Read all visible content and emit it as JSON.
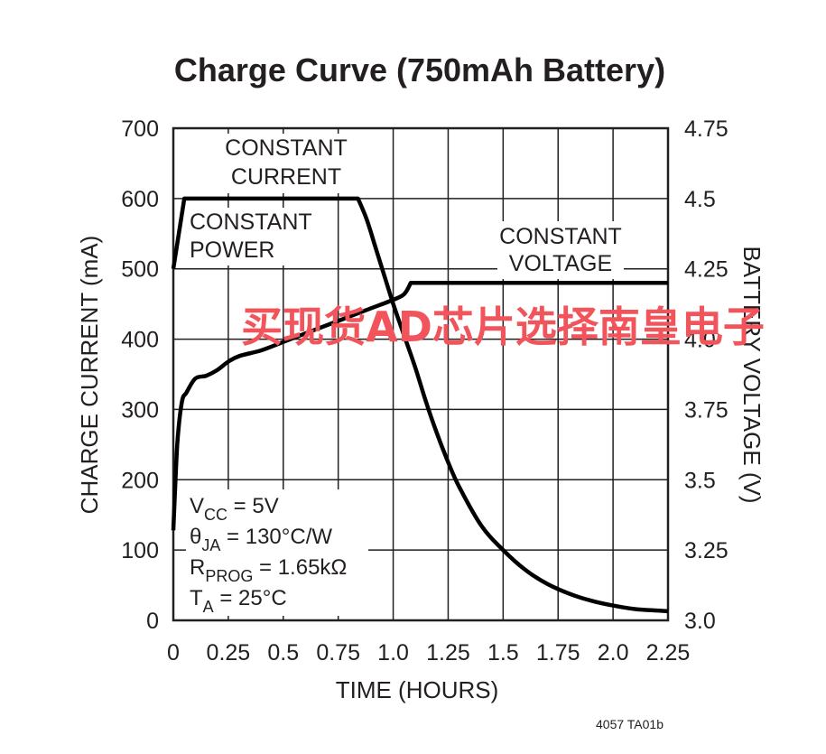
{
  "chart_data": {
    "type": "line",
    "title": "Charge Curve (750mAh Battery)",
    "xlabel": "TIME (HOURS)",
    "ylabel": "CHARGE CURRENT (mA)",
    "y2label": "BATTERY VOLTAGE (V)",
    "xlim": [
      0,
      2.25
    ],
    "ylim": [
      0,
      700
    ],
    "y2lim": [
      3.0,
      4.75
    ],
    "grid": true,
    "x_ticks": [
      "0",
      "0.25",
      "0.5",
      "0.75",
      "1.0",
      "1.25",
      "1.5",
      "1.75",
      "2.0",
      "2.25"
    ],
    "y_ticks": [
      "0",
      "100",
      "200",
      "300",
      "400",
      "500",
      "600",
      "700"
    ],
    "y2_ticks": [
      "3.0",
      "3.25",
      "3.5",
      "3.75",
      "4.0",
      "4.25",
      "4.5",
      "4.75"
    ],
    "series": [
      {
        "axis": "left",
        "x": [
          0,
          0.05,
          0.84,
          0.88,
          0.92,
          0.96,
          1.0,
          1.05,
          1.1,
          1.15,
          1.2,
          1.25,
          1.3,
          1.4,
          1.5,
          1.6,
          1.7,
          1.8,
          1.9,
          2.0,
          2.1,
          2.2,
          2.25
        ],
        "y": [
          500,
          600,
          600,
          570,
          530,
          490,
          450,
          405,
          360,
          310,
          265,
          225,
          190,
          135,
          100,
          72,
          52,
          38,
          28,
          21,
          16,
          14,
          13
        ]
      },
      {
        "axis": "right",
        "x": [
          0,
          0.01,
          0.02,
          0.04,
          0.06,
          0.1,
          0.15,
          0.2,
          0.25,
          0.3,
          0.4,
          0.5,
          0.6,
          0.7,
          0.8,
          0.9,
          1.0,
          1.05,
          1.08,
          1.5,
          2.0,
          2.25
        ],
        "y": [
          3.32,
          3.5,
          3.65,
          3.78,
          3.81,
          3.86,
          3.87,
          3.89,
          3.92,
          3.94,
          3.96,
          3.99,
          4.02,
          4.05,
          4.08,
          4.11,
          4.14,
          4.16,
          4.2,
          4.2,
          4.2,
          4.2
        ]
      }
    ],
    "annotations": {
      "constant_current": [
        "CONSTANT",
        "CURRENT"
      ],
      "constant_power": [
        "CONSTANT",
        "POWER"
      ],
      "constant_voltage": [
        "CONSTANT",
        "VOLTAGE"
      ]
    },
    "conditions": {
      "vcc": {
        "base": "V",
        "sub": "CC",
        "rest": " = 5V"
      },
      "theta": {
        "base": "θ",
        "sub": "JA",
        "rest": " = 130°C/W"
      },
      "rprog": {
        "base": "R",
        "sub": "PROG",
        "rest": " = 1.65kΩ"
      },
      "ta": {
        "base": "T",
        "sub": "A",
        "rest": " = 25°C"
      }
    },
    "figure_id": "4057 TA01b",
    "watermark": "买现货AD芯片选择南皇电子"
  }
}
